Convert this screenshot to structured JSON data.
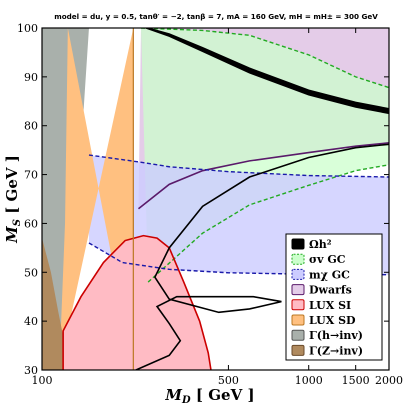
{
  "chart_data": {
    "type": "area",
    "title": "model = du, y = 0.5, tanθ′ = −2, tanβ = 7, mA = 160 GeV, mH = mH± = 300 GeV",
    "xlabel": "M_D [ GeV ]",
    "ylabel": "M_S [ GeV ]",
    "xlim": [
      100,
      2000
    ],
    "ylim": [
      30,
      100
    ],
    "x_scale": "log",
    "x_ticks": [
      100,
      500,
      1000,
      1500,
      2000
    ],
    "y_ticks": [
      30,
      40,
      50,
      60,
      70,
      80,
      90,
      100
    ],
    "grid": false,
    "legend_position": "bottom-right",
    "colors": {
      "omega": "#000000",
      "sigmav_fill": "#ccffcc",
      "sigmav_edge": "#22aa22",
      "mchi_fill": "#ccccff",
      "mchi_edge": "#1a1aaa",
      "dwarfs_fill": "#e4cce8",
      "dwarfs_edge": "#5a1a6a",
      "luxsi_fill": "#ffbbc4",
      "luxsi_edge": "#cc0000",
      "luxsd_fill": "#ffc080",
      "luxsd_edge": "#bb7722",
      "gh_fill": "#a9b0ab",
      "gz_fill": "#b08a5e"
    },
    "legend": [
      {
        "key": "omega",
        "label": "Ωh²"
      },
      {
        "key": "sigmav",
        "label": "σv GC"
      },
      {
        "key": "mchi",
        "label": "mχ GC"
      },
      {
        "key": "dwarfs",
        "label": "Dwarfs"
      },
      {
        "key": "luxsi",
        "label": "LUX SI"
      },
      {
        "key": "luxsd",
        "label": "LUX SD"
      },
      {
        "key": "gh",
        "label": "Γ(h→inv)"
      },
      {
        "key": "gz",
        "label": "Γ(Z→inv)"
      }
    ],
    "regions": {
      "dwarfs_lower": [
        [
          230,
          63
        ],
        [
          300,
          68
        ],
        [
          400,
          70.8
        ],
        [
          600,
          72.8
        ],
        [
          1000,
          74.5
        ],
        [
          1500,
          75.8
        ],
        [
          2000,
          76.5
        ]
      ],
      "sigmav_upper": [
        [
          235,
          100
        ],
        [
          400,
          99.5
        ],
        [
          600,
          98.5
        ],
        [
          1000,
          94.5
        ],
        [
          1500,
          90
        ],
        [
          2000,
          87.8
        ]
      ],
      "sigmav_lower": [
        [
          250,
          48
        ],
        [
          400,
          58
        ],
        [
          600,
          63.8
        ],
        [
          1000,
          67.8
        ],
        [
          1500,
          70.8
        ],
        [
          2000,
          72
        ]
      ],
      "mchi_upper": [
        [
          150,
          74
        ],
        [
          230,
          72.6
        ],
        [
          300,
          71.6
        ],
        [
          500,
          70.6
        ],
        [
          1000,
          69.8
        ],
        [
          2000,
          69.5
        ]
      ],
      "mchi_lower": [
        [
          150,
          56
        ],
        [
          200,
          52
        ],
        [
          300,
          50.6
        ],
        [
          500,
          49.9
        ],
        [
          1000,
          49.6
        ],
        [
          2000,
          49.5
        ]
      ],
      "omega_upper": [
        [
          250,
          100
        ],
        [
          300,
          98.8
        ],
        [
          400,
          96
        ],
        [
          600,
          91.8
        ],
        [
          1000,
          87.3
        ],
        [
          1500,
          84.8
        ],
        [
          2000,
          83.5
        ]
      ],
      "omega_lower": [
        [
          245,
          100
        ],
        [
          300,
          98.3
        ],
        [
          400,
          95.2
        ],
        [
          600,
          90.8
        ],
        [
          1000,
          86.3
        ],
        [
          1500,
          83.8
        ],
        [
          2000,
          82.5
        ]
      ],
      "omega_loop": [
        [
          225,
          30
        ],
        [
          300,
          33
        ],
        [
          330,
          36
        ],
        [
          300,
          39.5
        ],
        [
          270,
          43
        ],
        [
          320,
          45
        ],
        [
          480,
          45
        ],
        [
          620,
          45
        ],
        [
          790,
          44
        ],
        [
          600,
          42.5
        ],
        [
          460,
          41.8
        ],
        [
          300,
          44.5
        ],
        [
          265,
          49
        ],
        [
          300,
          55
        ],
        [
          400,
          63.5
        ],
        [
          600,
          69.5
        ],
        [
          1000,
          73.5
        ],
        [
          1500,
          75.5
        ],
        [
          2000,
          76.2
        ]
      ],
      "luxsi": [
        [
          120,
          30
        ],
        [
          120,
          38
        ],
        [
          140,
          45
        ],
        [
          170,
          52
        ],
        [
          205,
          56.5
        ],
        [
          240,
          57.5
        ],
        [
          270,
          57
        ],
        [
          300,
          55
        ],
        [
          340,
          48
        ],
        [
          390,
          40
        ],
        [
          420,
          33.5
        ],
        [
          430,
          30
        ]
      ],
      "luxsd_right": [
        [
          220,
          30
        ],
        [
          220,
          100
        ]
      ],
      "luxsd_left": [
        [
          125,
          100
        ],
        [
          122,
          60
        ],
        [
          118,
          40
        ],
        [
          116,
          30
        ]
      ],
      "gh_right": [
        [
          118,
          30
        ],
        [
          125,
          60
        ],
        [
          140,
          75
        ],
        [
          150,
          100
        ]
      ],
      "gz_right": [
        [
          128,
          30
        ],
        [
          122,
          35
        ],
        [
          115,
          42
        ],
        [
          108,
          50
        ],
        [
          100,
          57
        ]
      ]
    }
  }
}
